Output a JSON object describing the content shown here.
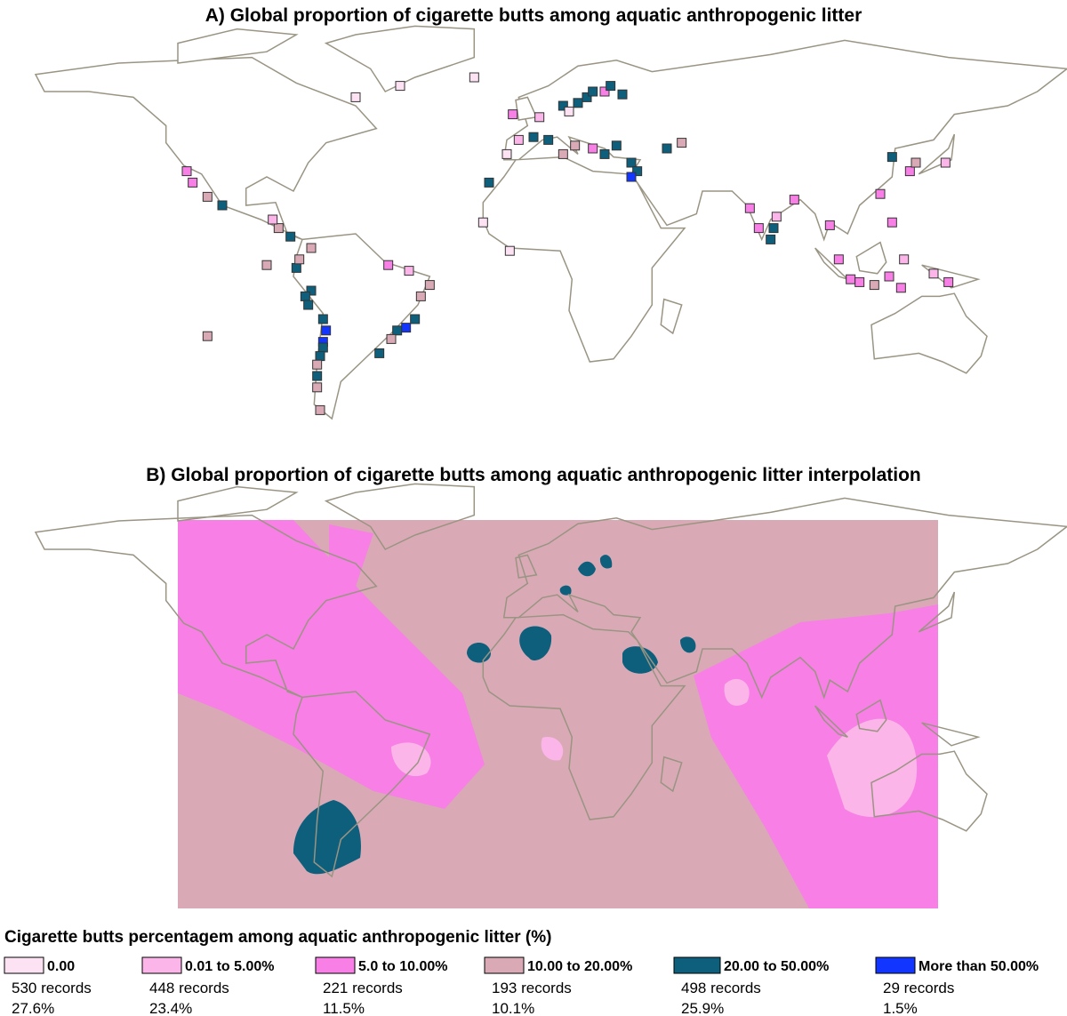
{
  "panel_a": {
    "title": "A) Global proportion of cigarette butts among aquatic anthropogenic litter"
  },
  "panel_b": {
    "title": "B) Global proportion of cigarette butts among aquatic anthropogenic litter interpolation"
  },
  "legend": {
    "title": "Cigarette butts percentagem among aquatic anthropogenic litter (%)",
    "items": [
      {
        "label": "0.00",
        "records": "530 records",
        "percent": "27.6%",
        "color": "#fde2f3"
      },
      {
        "label": "0.01 to 5.00%",
        "records": "448 records",
        "percent": "23.4%",
        "color": "#fbb5e8"
      },
      {
        "label": "5.0 to 10.00%",
        "records": "221 records",
        "percent": "11.5%",
        "color": "#f77fe5"
      },
      {
        "label": "10.00 to 20.00%",
        "records": "193 records",
        "percent": "10.1%",
        "color": "#d9aab5"
      },
      {
        "label": "20.00 to 50.00%",
        "records": "498 records",
        "percent": "25.9%",
        "color": "#0e5f7c"
      },
      {
        "label": "More than 50.00%",
        "records": "29 records",
        "percent": "1.5%",
        "color": "#1236ff"
      }
    ]
  }
}
